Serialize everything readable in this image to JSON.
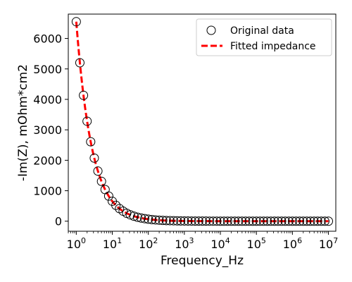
{
  "chart_data": {
    "type": "scatter",
    "title": "",
    "xlabel": "Frequency_Hz",
    "ylabel": "-Im(Z), mOhm*cm2",
    "xscale": "log",
    "xlim": [
      0.6,
      16000000.0
    ],
    "ylim": [
      -330,
      6800
    ],
    "x_ticks": [
      1,
      10,
      100,
      1000,
      10000,
      100000,
      1000000,
      10000000
    ],
    "x_tick_labels": [
      {
        "base": "10",
        "exp": "0"
      },
      {
        "base": "10",
        "exp": "1"
      },
      {
        "base": "10",
        "exp": "2"
      },
      {
        "base": "10",
        "exp": "3"
      },
      {
        "base": "10",
        "exp": "4"
      },
      {
        "base": "10",
        "exp": "5"
      },
      {
        "base": "10",
        "exp": "6"
      },
      {
        "base": "10",
        "exp": "7"
      }
    ],
    "y_ticks": [
      0,
      1000,
      2000,
      3000,
      4000,
      5000,
      6000
    ],
    "y_tick_labels": [
      "0",
      "1000",
      "2000",
      "3000",
      "4000",
      "5000",
      "6000"
    ],
    "grid": false,
    "legend_position": "top-right",
    "series": [
      {
        "name": "Original data",
        "kind": "markers",
        "marker": "open-circle",
        "color": "#000000",
        "x_range": [
          1,
          10000000
        ],
        "points_per_decade": 10,
        "model": {
          "a": 6550,
          "b": 1.0
        }
      },
      {
        "name": "Fitted impedance",
        "kind": "dashed-line",
        "color": "#ff0000",
        "x_range": [
          1,
          10000000
        ],
        "model": {
          "a": 6550,
          "b": 1.0
        }
      }
    ]
  }
}
